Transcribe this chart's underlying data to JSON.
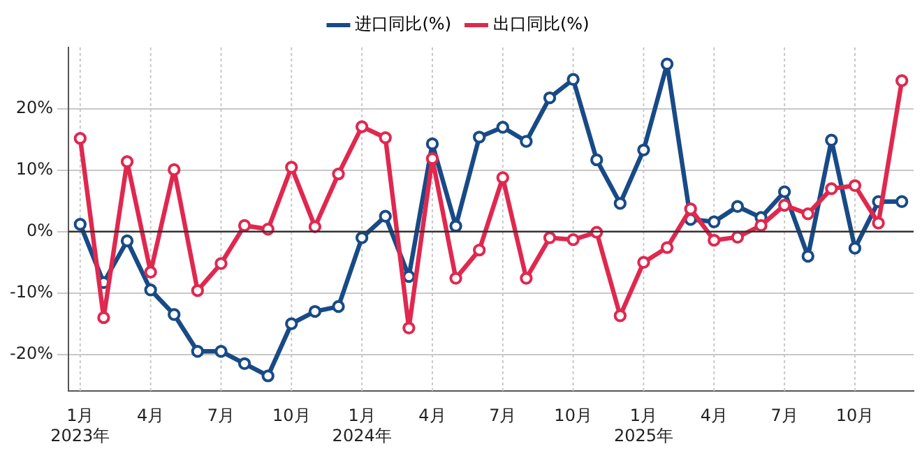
{
  "chart_data": {
    "type": "line",
    "categories": [
      "1月\n2023年",
      null,
      null,
      "4月",
      null,
      null,
      "7月",
      null,
      null,
      "10月",
      null,
      null,
      "1月\n2024年",
      null,
      null,
      "4月",
      null,
      null,
      "7月",
      null,
      null,
      "10月",
      null,
      null,
      "1月\n2025年",
      null,
      null,
      "4月",
      null,
      null,
      "7月",
      null,
      null,
      "10月",
      null,
      null
    ],
    "series": [
      {
        "name": "进口同比(%)",
        "color": "#184a86",
        "values": [
          1.2,
          -8.3,
          -1.5,
          -9.5,
          -13.5,
          -19.5,
          -19.5,
          -21.5,
          -23.5,
          -15,
          -13,
          -12.2,
          -1,
          2.5,
          -7.3,
          14.3,
          0.9,
          15.4,
          17,
          14.7,
          21.8,
          24.8,
          11.7,
          4.6,
          13.3,
          27.3,
          2.0,
          1.6,
          4.1,
          2.3,
          6.5,
          -4,
          14.9,
          -2.7,
          4.9,
          4.9
        ]
      },
      {
        "name": "出口同比(%)",
        "color": "#e0284f",
        "values": [
          15.2,
          -14,
          11.4,
          -6.6,
          10.1,
          -9.6,
          -5.2,
          1.0,
          0.4,
          10.5,
          0.8,
          9.4,
          17.1,
          15.3,
          -15.7,
          11.9,
          -7.6,
          -3.0,
          8.8,
          -7.6,
          -1.0,
          -1.3,
          -0.1,
          -13.7,
          -5,
          -2.6,
          3.7,
          -1.4,
          -0.9,
          1.0,
          4.3,
          2.9,
          7.0,
          7.5,
          1.4,
          24.6
        ]
      }
    ],
    "ylim": [
      -26,
      30
    ],
    "yticks": [
      {
        "value": -20,
        "label": "-20%"
      },
      {
        "value": -10,
        "label": "-10%"
      },
      {
        "value": 0,
        "label": "0%"
      },
      {
        "value": 10,
        "label": "10%"
      },
      {
        "value": 20,
        "label": "20%"
      }
    ],
    "ref_lines": [
      {
        "axis": "y",
        "value": 0,
        "color": "#333333"
      }
    ],
    "grid": true,
    "legend": "top",
    "marker": "circle",
    "line_style": "solid"
  }
}
